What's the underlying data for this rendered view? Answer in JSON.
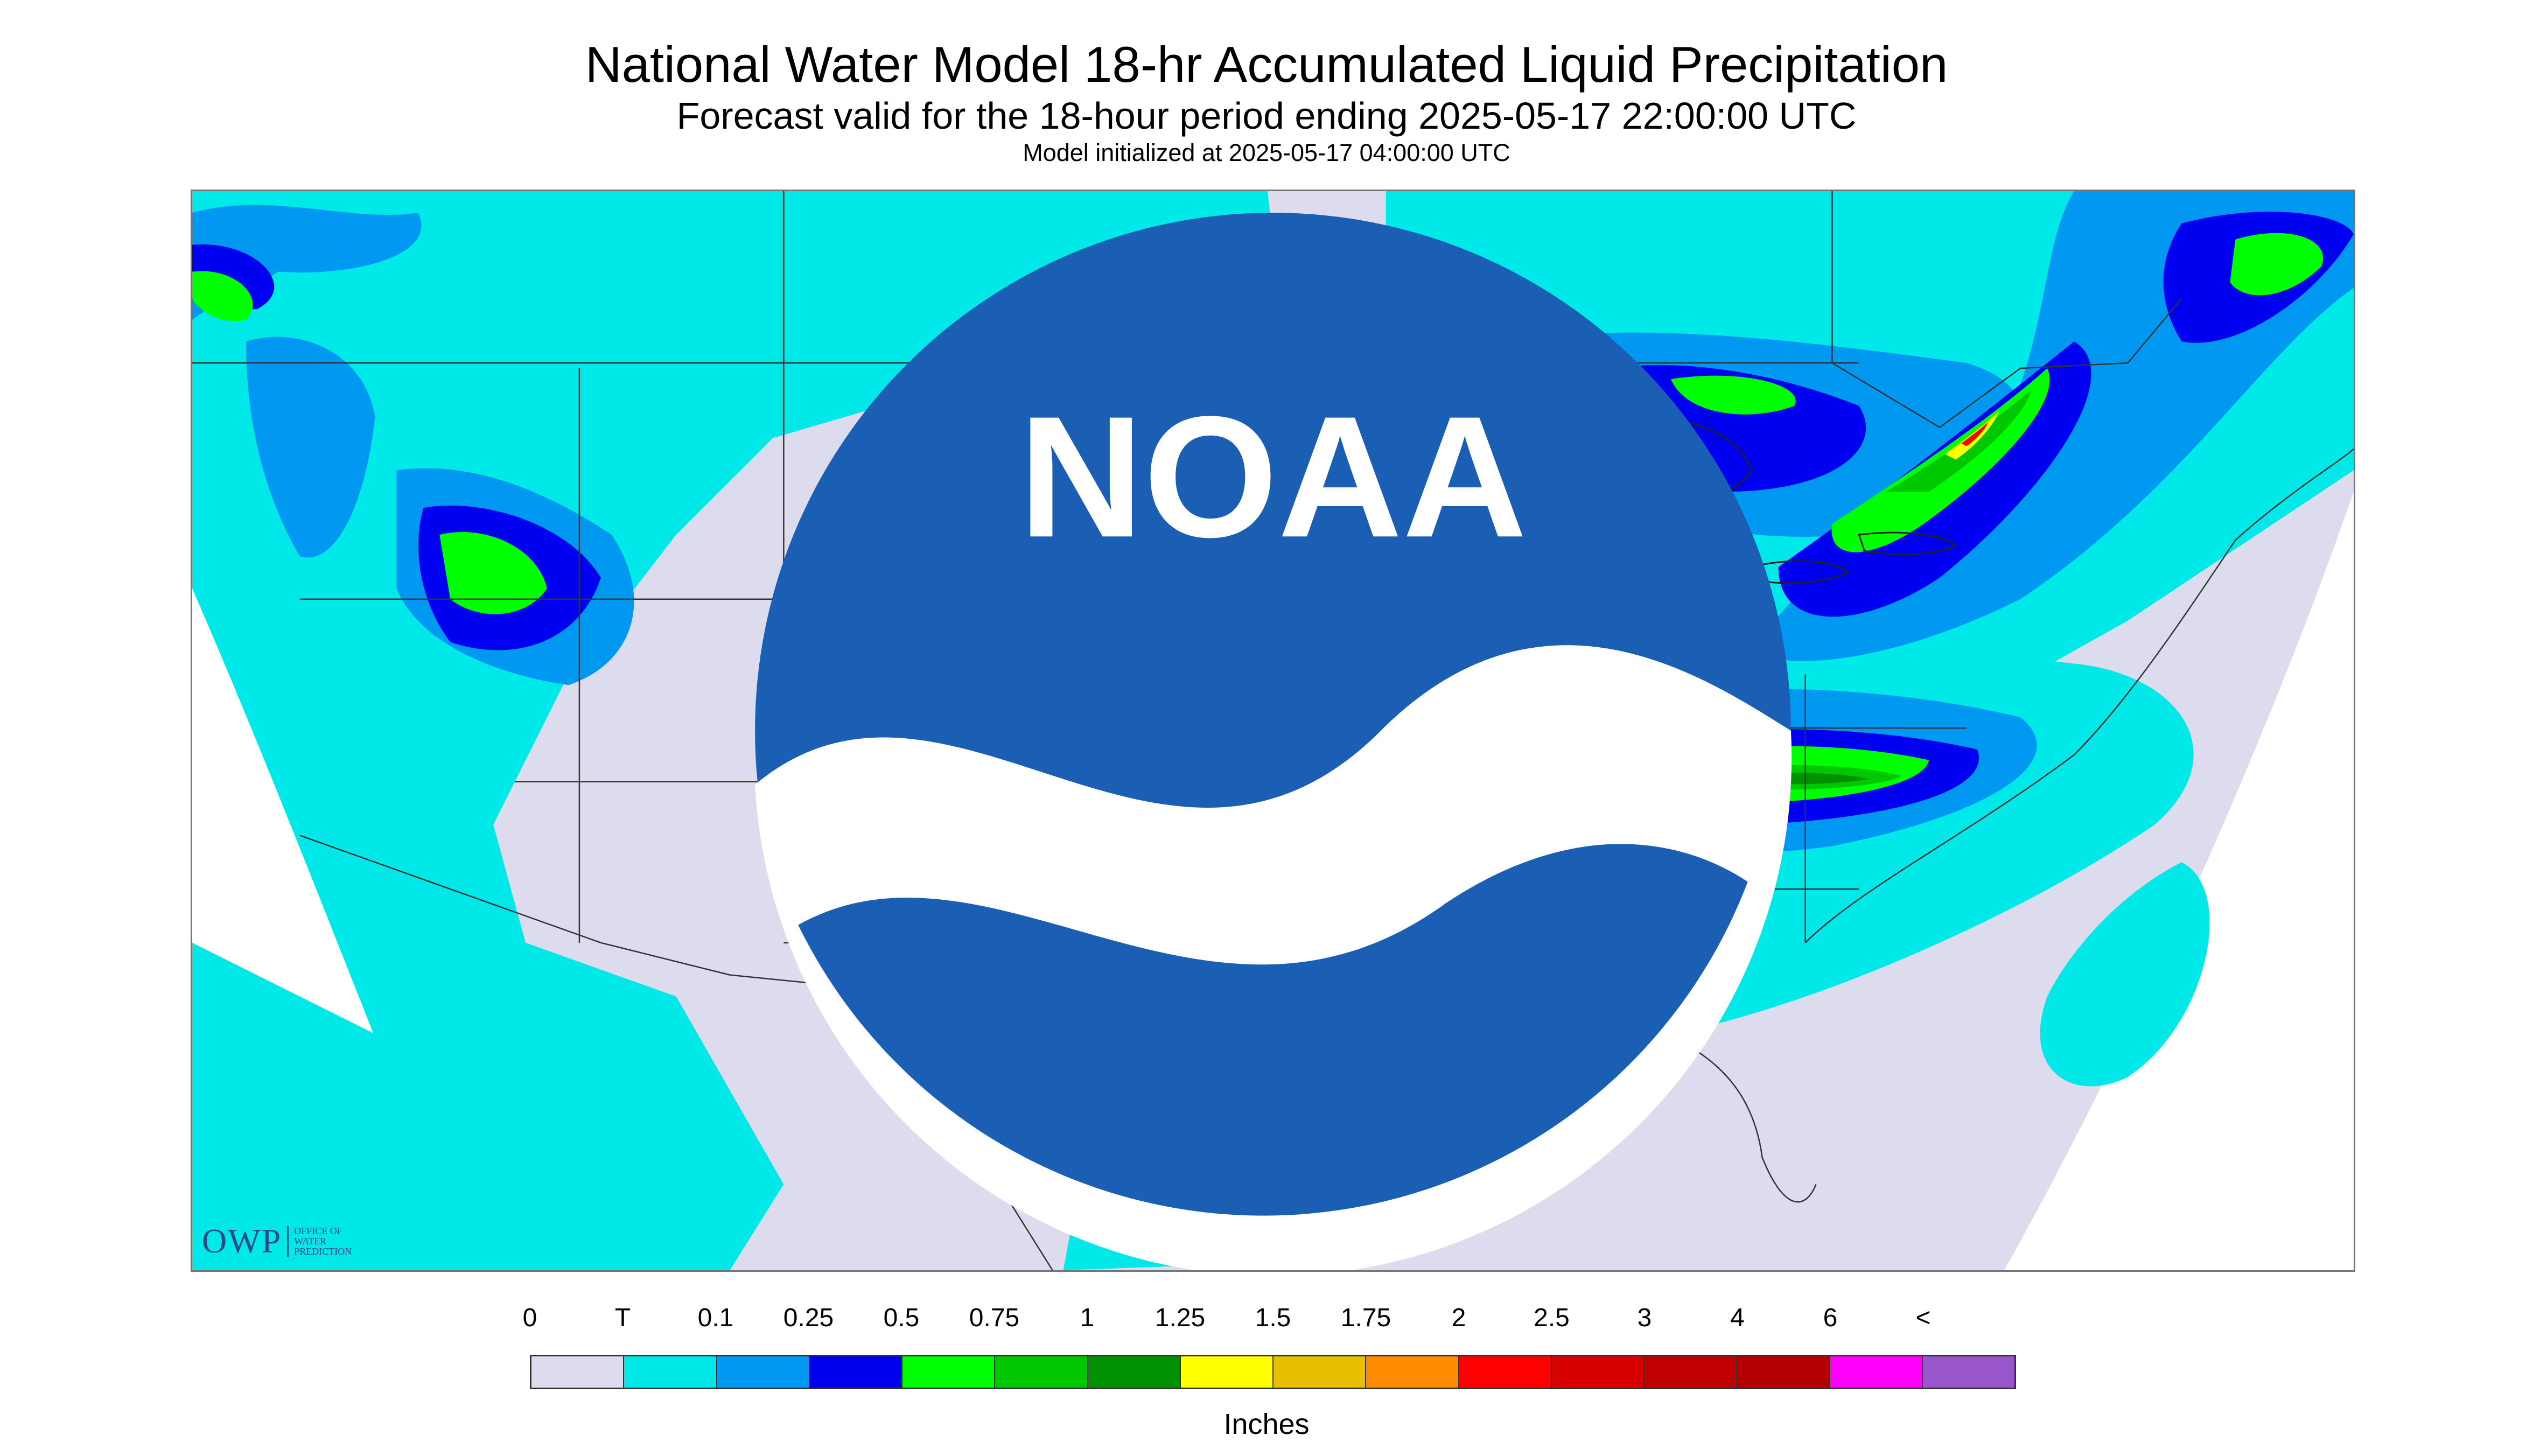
{
  "header": {
    "title": "National Water Model 18-hr Accumulated Liquid Precipitation",
    "subtitle": "Forecast valid for the 18-hour period ending 2025-05-17 22:00:00 UTC",
    "init": "Model initialized at 2025-05-17 04:00:00 UTC"
  },
  "logos": {
    "owp_mark": "OWP",
    "owp_text": "Office of Water Prediction",
    "noaa_text": "NOAA"
  },
  "legend": {
    "ticks": [
      "0",
      "T",
      "0.1",
      "0.25",
      "0.5",
      "0.75",
      "1",
      "1.25",
      "1.5",
      "1.75",
      "2",
      "2.5",
      "3",
      "4",
      "6",
      "<"
    ],
    "colors": [
      "#dcdcee",
      "#00e8e8",
      "#0098f0",
      "#0000f0",
      "#00ff00",
      "#00c800",
      "#009000",
      "#ffff00",
      "#e8c000",
      "#ff8c00",
      "#ff0000",
      "#d80000",
      "#c00000",
      "#b40000",
      "#ff00ff",
      "#9955cc"
    ],
    "units": "Inches"
  }
}
